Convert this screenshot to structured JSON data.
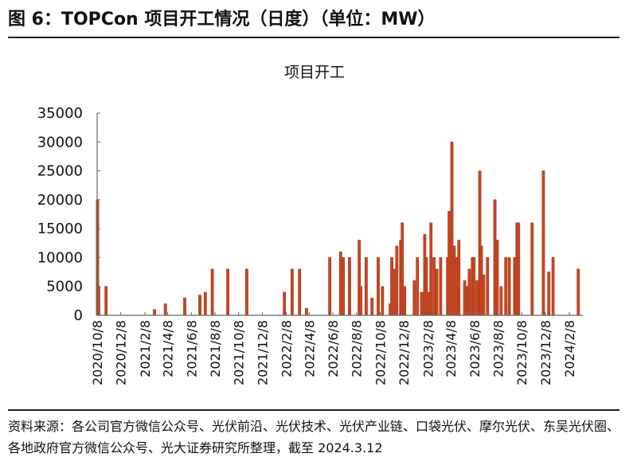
{
  "figure_title": "图 6：TOPCon 项目开工情况（日度）（单位：MW）",
  "source_note": "资料来源：各公司官方微信公众号、光伏前沿、光伏技术、光伏产业链、口袋光伏、摩尔光伏、东吴光伏圈、各地政府官方微信公众号、光大证券研究所整理，截至 2024.3.12",
  "chart_data": {
    "type": "bar",
    "title": "项目开工",
    "xlabel": "",
    "ylabel": "",
    "ylim": [
      0,
      35000
    ],
    "yticks": [
      "0",
      "5000",
      "10000",
      "15000",
      "20000",
      "25000",
      "30000",
      "35000"
    ],
    "xlim": [
      "2020-10-08",
      "2024-03-12"
    ],
    "xticks": [
      "2020/10/8",
      "2020/12/8",
      "2021/2/8",
      "2021/4/8",
      "2021/6/8",
      "2021/8/8",
      "2021/10/8",
      "2021/12/8",
      "2022/2/8",
      "2022/4/8",
      "2022/6/8",
      "2022/8/8",
      "2022/10/8",
      "2022/12/8",
      "2023/2/8",
      "2023/4/8",
      "2023/6/8",
      "2023/8/8",
      "2023/10/8",
      "2023/12/8",
      "2024/2/8"
    ],
    "grid": false,
    "bar_color": "#c9461f",
    "bar_edge_color": "#9e3a22",
    "points": [
      [
        "2020-10-09",
        20000
      ],
      [
        "2020-10-12",
        5000
      ],
      [
        "2020-10-31",
        5000
      ],
      [
        "2021-03-05",
        1000
      ],
      [
        "2021-04-02",
        2000
      ],
      [
        "2021-05-22",
        3000
      ],
      [
        "2021-06-30",
        3500
      ],
      [
        "2021-07-14",
        4000
      ],
      [
        "2021-08-01",
        8000
      ],
      [
        "2021-09-10",
        8000
      ],
      [
        "2021-10-29",
        8000
      ],
      [
        "2022-02-03",
        4000
      ],
      [
        "2022-02-23",
        8000
      ],
      [
        "2022-03-14",
        8000
      ],
      [
        "2022-04-01",
        1200
      ],
      [
        "2022-05-31",
        10000
      ],
      [
        "2022-06-28",
        11000
      ],
      [
        "2022-07-05",
        10000
      ],
      [
        "2022-07-21",
        10000
      ],
      [
        "2022-08-15",
        13000
      ],
      [
        "2022-08-19",
        5000
      ],
      [
        "2022-09-02",
        10000
      ],
      [
        "2022-09-17",
        3000
      ],
      [
        "2022-10-03",
        10000
      ],
      [
        "2022-10-14",
        5000
      ],
      [
        "2022-11-03",
        2000
      ],
      [
        "2022-11-07",
        10000
      ],
      [
        "2022-11-12",
        8000
      ],
      [
        "2022-11-20",
        12000
      ],
      [
        "2022-11-30",
        13000
      ],
      [
        "2022-12-04",
        16000
      ],
      [
        "2022-12-10",
        5000
      ],
      [
        "2023-01-04",
        6000
      ],
      [
        "2023-01-12",
        10000
      ],
      [
        "2023-01-23",
        4000
      ],
      [
        "2023-01-31",
        14000
      ],
      [
        "2023-02-04",
        10000
      ],
      [
        "2023-02-10",
        4000
      ],
      [
        "2023-02-16",
        16000
      ],
      [
        "2023-02-24",
        10000
      ],
      [
        "2023-03-03",
        8000
      ],
      [
        "2023-03-13",
        10000
      ],
      [
        "2023-03-31",
        10000
      ],
      [
        "2023-04-04",
        18000
      ],
      [
        "2023-04-11",
        30000
      ],
      [
        "2023-04-17",
        12000
      ],
      [
        "2023-04-23",
        10000
      ],
      [
        "2023-04-29",
        13000
      ],
      [
        "2023-05-14",
        6000
      ],
      [
        "2023-05-22",
        5000
      ],
      [
        "2023-05-26",
        8000
      ],
      [
        "2023-06-03",
        10000
      ],
      [
        "2023-06-07",
        10000
      ],
      [
        "2023-06-15",
        6000
      ],
      [
        "2023-06-22",
        25000
      ],
      [
        "2023-06-26",
        12000
      ],
      [
        "2023-07-02",
        7000
      ],
      [
        "2023-07-12",
        10000
      ],
      [
        "2023-07-31",
        20000
      ],
      [
        "2023-08-06",
        13000
      ],
      [
        "2023-08-16",
        5000
      ],
      [
        "2023-08-28",
        10000
      ],
      [
        "2023-09-06",
        10000
      ],
      [
        "2023-09-20",
        10000
      ],
      [
        "2023-09-26",
        16000
      ],
      [
        "2023-09-30",
        16000
      ],
      [
        "2023-11-04",
        16000
      ],
      [
        "2023-12-03",
        25000
      ],
      [
        "2023-12-17",
        7500
      ],
      [
        "2023-12-28",
        10000
      ],
      [
        "2024-03-02",
        8000
      ]
    ]
  }
}
